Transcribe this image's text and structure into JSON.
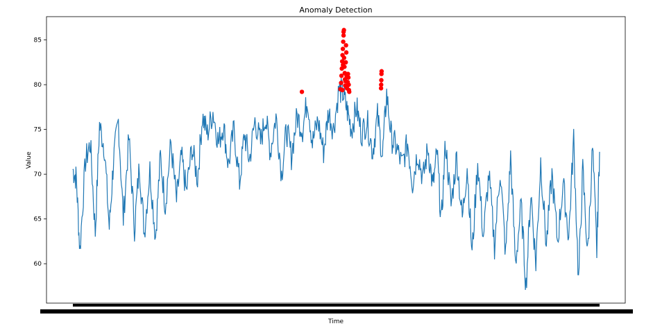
{
  "chart_data": {
    "type": "line",
    "title": "Anomaly Detection",
    "xlabel": "Time",
    "ylabel": "Value",
    "ylim": [
      55.6,
      87.6
    ],
    "yticks": [
      60,
      65,
      70,
      75,
      80,
      85
    ],
    "ytick_labels": [
      "60",
      "65",
      "70",
      "75",
      "80",
      "85"
    ],
    "grid": false,
    "colors": {
      "line": "#1f77b4",
      "anomaly": "#ff0000"
    },
    "x_ticks_note": "dense overlapping date tick labels (unreadable)",
    "series": [
      {
        "kind": "line",
        "baseline_points": [
          [
            0,
            70.5
          ],
          [
            5,
            69.5
          ],
          [
            10,
            61.5
          ],
          [
            18,
            71.5
          ],
          [
            25,
            73.5
          ],
          [
            32,
            63.5
          ],
          [
            38,
            75.5
          ],
          [
            45,
            73.0
          ],
          [
            52,
            64.0
          ],
          [
            58,
            71.5
          ],
          [
            65,
            76.0
          ],
          [
            72,
            65.0
          ],
          [
            80,
            74.0
          ],
          [
            88,
            64.0
          ],
          [
            95,
            71.0
          ],
          [
            102,
            63.5
          ],
          [
            110,
            70.5
          ],
          [
            118,
            63.0
          ],
          [
            125,
            72.0
          ],
          [
            132,
            66.5
          ],
          [
            140,
            73.5
          ],
          [
            148,
            67.0
          ],
          [
            155,
            72.0
          ],
          [
            162,
            68.0
          ],
          [
            170,
            73.0
          ],
          [
            178,
            69.5
          ],
          [
            185,
            76.5
          ],
          [
            192,
            74.5
          ],
          [
            200,
            77.0
          ],
          [
            208,
            73.5
          ],
          [
            215,
            75.5
          ],
          [
            222,
            71.0
          ],
          [
            230,
            75.0
          ],
          [
            238,
            69.0
          ],
          [
            245,
            74.5
          ],
          [
            252,
            71.5
          ],
          [
            260,
            76.0
          ],
          [
            268,
            73.5
          ],
          [
            275,
            76.5
          ],
          [
            282,
            72.5
          ],
          [
            290,
            76.5
          ],
          [
            298,
            70.0
          ],
          [
            305,
            75.0
          ],
          [
            312,
            72.0
          ],
          [
            320,
            76.5
          ],
          [
            328,
            75.0
          ],
          [
            335,
            78.5
          ],
          [
            342,
            73.5
          ],
          [
            350,
            76.0
          ],
          [
            358,
            72.5
          ],
          [
            365,
            77.0
          ],
          [
            372,
            75.0
          ],
          [
            380,
            79.5
          ],
          [
            386,
            79.0
          ],
          [
            392,
            77.0
          ],
          [
            398,
            75.0
          ],
          [
            405,
            77.5
          ],
          [
            412,
            74.5
          ],
          [
            420,
            76.0
          ],
          [
            428,
            72.5
          ],
          [
            435,
            76.5
          ],
          [
            442,
            72.0
          ],
          [
            448,
            79.0
          ],
          [
            455,
            74.0
          ],
          [
            462,
            73.0
          ],
          [
            470,
            71.0
          ],
          [
            478,
            73.5
          ],
          [
            485,
            69.0
          ],
          [
            492,
            72.5
          ],
          [
            500,
            69.5
          ],
          [
            507,
            73.0
          ],
          [
            514,
            68.5
          ],
          [
            520,
            72.5
          ],
          [
            526,
            64.5
          ],
          [
            532,
            73.5
          ],
          [
            540,
            66.5
          ],
          [
            548,
            72.0
          ],
          [
            556,
            65.0
          ],
          [
            563,
            71.0
          ],
          [
            570,
            61.0
          ],
          [
            578,
            71.5
          ],
          [
            586,
            63.0
          ],
          [
            594,
            70.0
          ],
          [
            602,
            62.0
          ],
          [
            610,
            70.5
          ],
          [
            618,
            61.0
          ],
          [
            625,
            72.0
          ],
          [
            632,
            60.0
          ],
          [
            640,
            66.5
          ],
          [
            647,
            57.5
          ],
          [
            654,
            68.0
          ],
          [
            661,
            60.0
          ],
          [
            668,
            71.5
          ],
          [
            676,
            62.0
          ],
          [
            684,
            70.0
          ],
          [
            692,
            62.5
          ],
          [
            700,
            69.0
          ],
          [
            708,
            63.0
          ],
          [
            715,
            74.0
          ],
          [
            722,
            58.0
          ],
          [
            728,
            70.5
          ],
          [
            735,
            61.0
          ],
          [
            742,
            73.0
          ],
          [
            748,
            61.5
          ],
          [
            752,
            72.5
          ]
        ]
      },
      {
        "kind": "anomalies",
        "points": [
          [
            327,
            79.2
          ],
          [
            382,
            79.5
          ],
          [
            383,
            80.2
          ],
          [
            383.5,
            81.0
          ],
          [
            384,
            81.8
          ],
          [
            384.5,
            82.6
          ],
          [
            385,
            83.3
          ],
          [
            385.5,
            84.0
          ],
          [
            386,
            84.8
          ],
          [
            386.5,
            85.5
          ],
          [
            387,
            86.1
          ],
          [
            386.5,
            85.9
          ],
          [
            387.2,
            83.0
          ],
          [
            387.8,
            82.0
          ],
          [
            388.2,
            81.3
          ],
          [
            388.5,
            80.6
          ],
          [
            388.8,
            79.9
          ],
          [
            389.2,
            80.4
          ],
          [
            389.6,
            82.5
          ],
          [
            390,
            84.4
          ],
          [
            390.4,
            83.6
          ],
          [
            390.8,
            81.0
          ],
          [
            391.2,
            79.6
          ],
          [
            391.6,
            80.9
          ],
          [
            392,
            79.9
          ],
          [
            392.4,
            80.3
          ],
          [
            392.8,
            81.2
          ],
          [
            393.4,
            80.8
          ],
          [
            393.8,
            80.0
          ],
          [
            394.2,
            79.4
          ],
          [
            394.6,
            79.2
          ],
          [
            385.7,
            82.2
          ],
          [
            384.8,
            79.4
          ],
          [
            440,
            79.6
          ],
          [
            440.2,
            80.0
          ],
          [
            440.4,
            80.5
          ],
          [
            440.6,
            81.2
          ],
          [
            440.8,
            81.5
          ]
        ]
      }
    ]
  }
}
